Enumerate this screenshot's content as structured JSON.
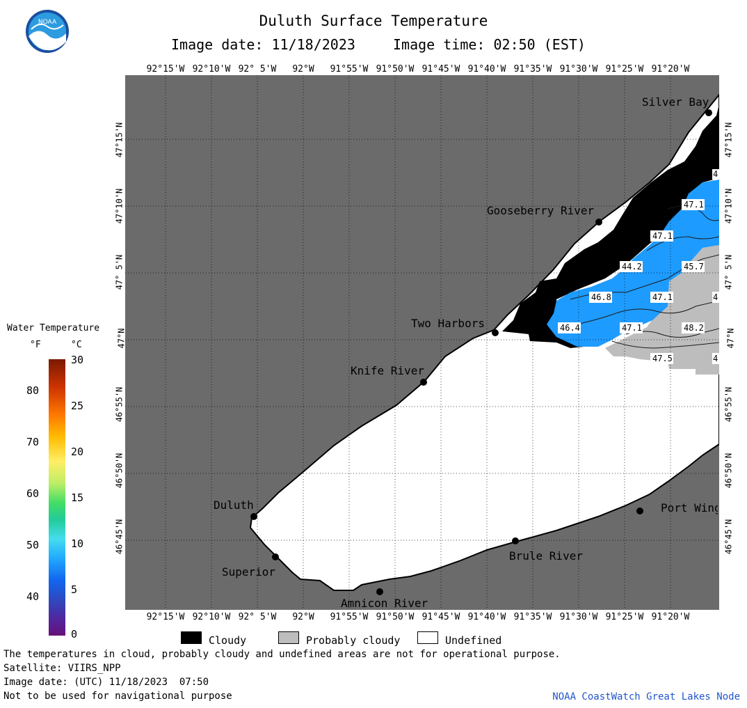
{
  "header": {
    "title": "Duluth Surface Temperature",
    "image_date": "Image date: 11/18/2023",
    "image_time": "Image time: 02:50 (EST)"
  },
  "longitude_labels": [
    "92°15'W",
    "92°10'W",
    "92° 5'W",
    "92°W",
    "91°55'W",
    "91°50'W",
    "91°45'W",
    "91°40'W",
    "91°35'W",
    "91°30'W",
    "91°25'W",
    "91°20'W"
  ],
  "latitude_labels": [
    "47°15'N",
    "47°10'N",
    "47° 5'N",
    "47°N",
    "46°55'N",
    "46°50'N",
    "46°45'N"
  ],
  "places": [
    "Silver Bay",
    "Gooseberry River",
    "Two Harbors",
    "Knife River",
    "Duluth",
    "Superior",
    "Amnicon River",
    "Brule River",
    "Port Wing"
  ],
  "temperature_labels": [
    "4",
    "47.1",
    "47.1",
    "44.2",
    "45.7",
    "46.8",
    "47.1",
    "4",
    "46.4",
    "47.1",
    "48.2",
    "47.5",
    "4"
  ],
  "legend": {
    "title": "Water Temperature",
    "unit_f": "°F",
    "unit_c": "°C",
    "f_ticks": [
      "80",
      "70",
      "60",
      "50",
      "40"
    ],
    "c_ticks": [
      "30",
      "25",
      "20",
      "15",
      "10",
      "5",
      "0"
    ],
    "categories": [
      "Cloudy",
      "Probably cloudy",
      "Undefined"
    ]
  },
  "colors": {
    "land": "#6b6b6b",
    "water_undefined": "#ffffff",
    "cloudy": "#000000",
    "probably_cloudy": "#bdbdbd",
    "water_temp": "#1e9bff",
    "credit": "#2255cc"
  },
  "footer": {
    "note1": "The temperatures in cloud, probably cloudy and undefined areas are not for operational purpose.",
    "satellite": "Satellite: VIIRS_NPP",
    "utc_date": "Image date: (UTC) 11/18/2023  07:50",
    "nav_note": "Not to be used for navigational purpose",
    "credit": "NOAA CoastWatch Great Lakes Node"
  }
}
